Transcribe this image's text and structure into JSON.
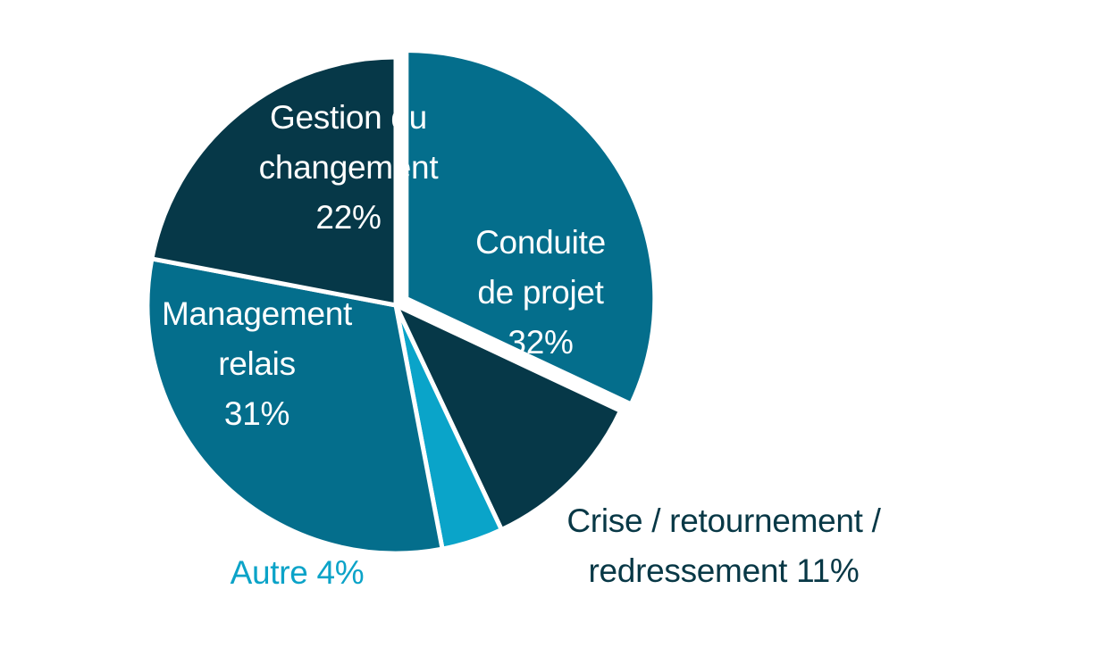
{
  "chart_data": {
    "type": "pie",
    "title": "",
    "slices": [
      {
        "label": "Conduite de projet",
        "value": 32,
        "value_label": "32%",
        "label_lines": [
          "Conduite",
          "de projet",
          "32%"
        ],
        "color": "#046e8c",
        "exploded": true
      },
      {
        "label": "Crise / retournement / redressement",
        "value": 11,
        "value_label": "11%",
        "label_lines": [
          "Crise / retournement /",
          "redressement 11%"
        ],
        "color": "#063848",
        "exploded": false
      },
      {
        "label": "Autre",
        "value": 4,
        "value_label": "4%",
        "label_lines": [
          "Autre 4%"
        ],
        "color": "#0aa4c9",
        "exploded": false
      },
      {
        "label": "Management relais",
        "value": 31,
        "value_label": "31%",
        "label_lines": [
          "Management",
          "relais",
          "31%"
        ],
        "color": "#046e8c",
        "exploded": false
      },
      {
        "label": "Gestion du changement",
        "value": 22,
        "value_label": "22%",
        "label_lines": [
          "Gestion du",
          "changement",
          "22%"
        ],
        "color": "#063848",
        "exploded": false
      }
    ],
    "start_angle_deg": 0,
    "direction": "clockwise",
    "legend": "none",
    "slice_border_color": "#ffffff"
  }
}
